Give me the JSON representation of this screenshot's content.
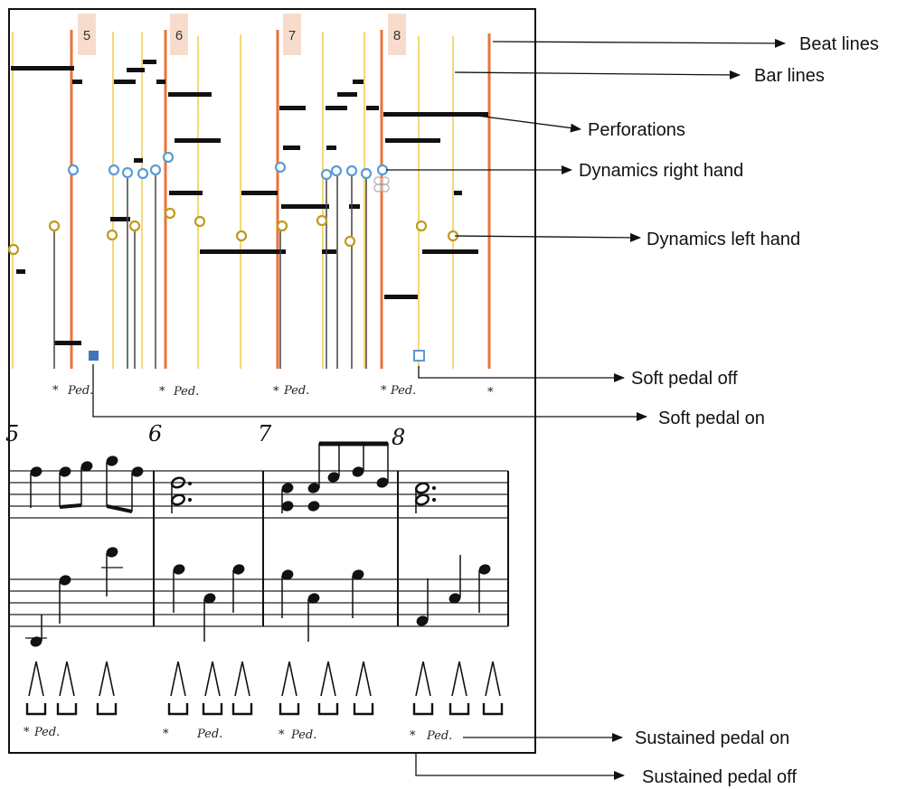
{
  "piano_roll": {
    "measures": [
      "5",
      "6",
      "7",
      "8"
    ],
    "pedal_marks": [
      "*",
      "Ped.",
      "*",
      "Ped.",
      "*",
      "Ped.",
      "*",
      "Ped.",
      "*"
    ]
  },
  "score": {
    "measures": [
      "5",
      "6",
      "7",
      "8"
    ],
    "pedal_marks": [
      "*",
      "Ped.",
      "*",
      "Ped.",
      "*",
      "Ped.",
      "*",
      "Ped."
    ]
  },
  "annotations": {
    "beat_lines": "Beat lines",
    "bar_lines": "Bar lines",
    "perforations": "Perforations",
    "dynamics_right_hand": "Dynamics right hand",
    "dynamics_left_hand": "Dynamics left hand",
    "soft_pedal_off": "Soft pedal off",
    "soft_pedal_on": "Soft pedal on",
    "sustained_pedal_on": "Sustained pedal on",
    "sustained_pedal_off": "Sustained pedal off"
  },
  "colors": {
    "beat_line": "#e8743a",
    "bar_line": "#f5d77a",
    "measure_badge": "#f8dccb",
    "dynamics_right": "#5b9bd5",
    "dynamics_left": "#c19a1b",
    "soft_pedal_on": "#3f76bd",
    "soft_pedal_off": "#5b9bd5",
    "perforation": "#111111"
  }
}
